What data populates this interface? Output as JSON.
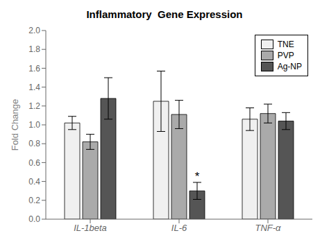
{
  "chart_data": {
    "type": "bar",
    "title": "Inflammatory  Gene Expression",
    "ylabel": "Fold Change",
    "categories": [
      "IL-1beta",
      "IL-6",
      "TNF-α"
    ],
    "series": [
      {
        "name": "TNE",
        "color": "#f0f0f0",
        "values": [
          1.02,
          1.25,
          1.06
        ],
        "errors": [
          0.07,
          0.32,
          0.12
        ]
      },
      {
        "name": "PVP",
        "color": "#aaaaaa",
        "values": [
          0.82,
          1.11,
          1.12
        ],
        "errors": [
          0.08,
          0.15,
          0.1
        ]
      },
      {
        "name": "Ag-NP",
        "color": "#555555",
        "values": [
          1.28,
          0.3,
          1.04
        ],
        "errors": [
          0.22,
          0.09,
          0.09
        ]
      }
    ],
    "ylim": [
      0,
      2.0
    ],
    "yticks": [
      {
        "value": 0.0,
        "label": "0.0"
      },
      0.2,
      0.4,
      0.6,
      0.8,
      {
        "value": 1.0,
        "label": "1.0"
      },
      1.2,
      1.4,
      1.6,
      1.8,
      {
        "value": 2.0,
        "label": "2.0"
      }
    ],
    "annotations": [
      {
        "text": "*",
        "category": "IL-6",
        "series": "Ag-NP"
      }
    ],
    "legend": "upper right",
    "grid": false
  }
}
